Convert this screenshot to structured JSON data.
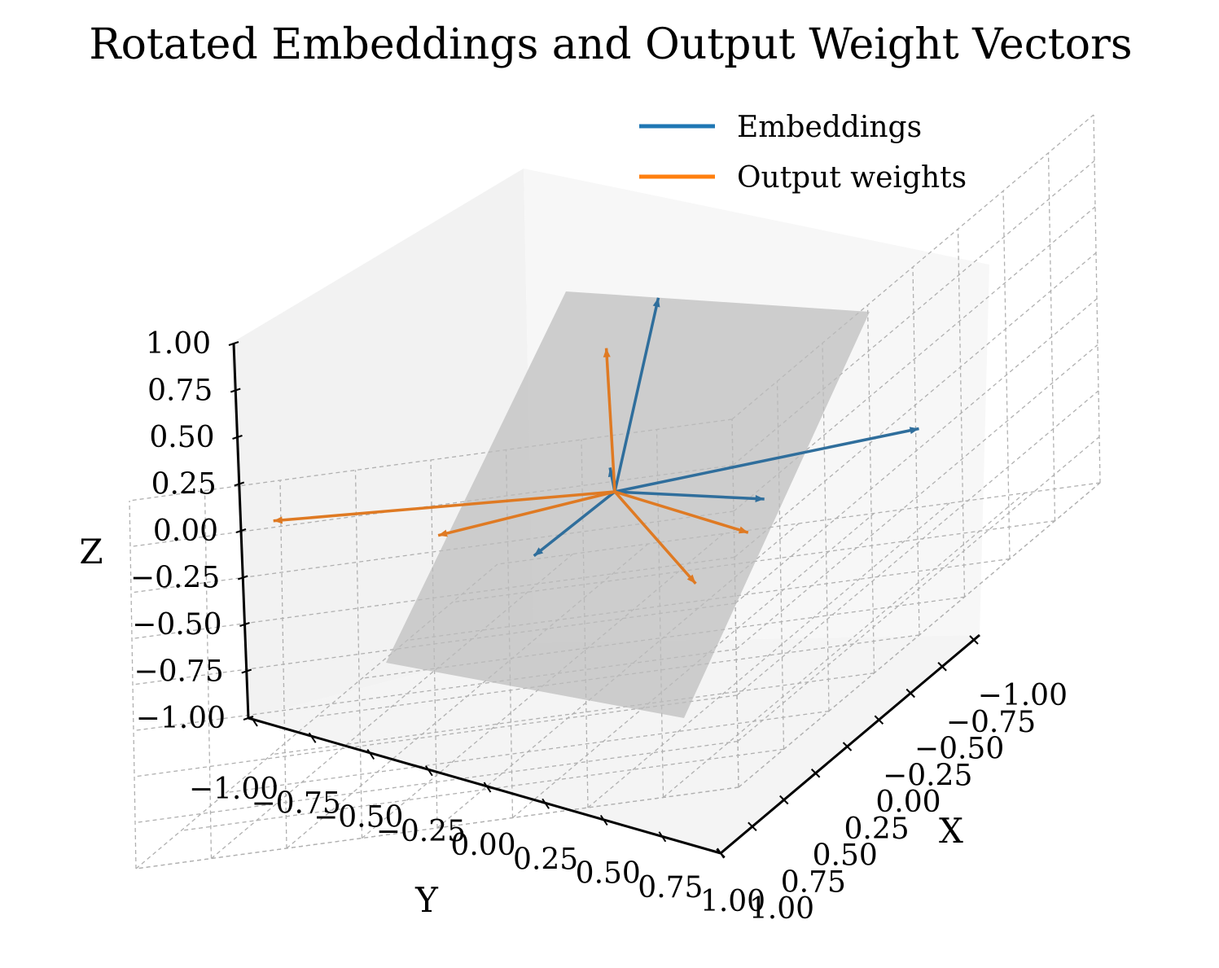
{
  "chart_data": {
    "type": "3d-quiver",
    "title": "Rotated Embeddings and Output Weight Vectors",
    "xlabel": "X",
    "ylabel": "Y",
    "zlabel": "Z",
    "xlim": [
      -1,
      1
    ],
    "ylim": [
      -1,
      1
    ],
    "zlim": [
      -1,
      1
    ],
    "x_ticks": [
      "−1.00",
      "−0.75",
      "−0.50",
      "−0.25",
      "0.00",
      "0.25",
      "0.50",
      "0.75",
      "1.00"
    ],
    "y_ticks": [
      "−1.00",
      "−0.75",
      "−0.50",
      "−0.25",
      "0.00",
      "0.25",
      "0.50",
      "0.75",
      "1.00"
    ],
    "z_ticks": [
      "−1.00",
      "−0.75",
      "−0.50",
      "−0.25",
      "0.00",
      "0.25",
      "0.50",
      "0.75",
      "1.00"
    ],
    "grid": true,
    "legend_position": "top-right",
    "plane": {
      "normal_hint": "tilted plane through origin",
      "color": "#bdbdbd"
    },
    "series": [
      {
        "name": "Embeddings",
        "color": "#1f77b4",
        "vectors": [
          [
            0.0,
            0.0,
            0.0,
            -0.6,
            -0.35,
            0.55
          ],
          [
            0.0,
            0.0,
            0.0,
            0.75,
            0.3,
            0.5
          ],
          [
            0.0,
            0.0,
            0.0,
            0.1,
            -0.95,
            0.05
          ],
          [
            0.0,
            0.0,
            0.0,
            0.65,
            -0.1,
            -0.6
          ],
          [
            0.0,
            0.0,
            0.0,
            -0.2,
            0.15,
            -0.15
          ]
        ]
      },
      {
        "name": "Output weights",
        "color": "#ff7f0e",
        "vectors": [
          [
            0.0,
            0.0,
            0.0,
            0.05,
            0.05,
            0.75
          ],
          [
            0.0,
            0.0,
            0.0,
            -0.3,
            0.95,
            0.3
          ],
          [
            0.0,
            0.0,
            0.0,
            -0.1,
            -0.5,
            -0.25
          ],
          [
            0.0,
            0.0,
            0.0,
            0.35,
            0.8,
            -0.35
          ],
          [
            0.0,
            0.0,
            0.0,
            0.35,
            -0.05,
            -0.8
          ]
        ]
      }
    ]
  }
}
